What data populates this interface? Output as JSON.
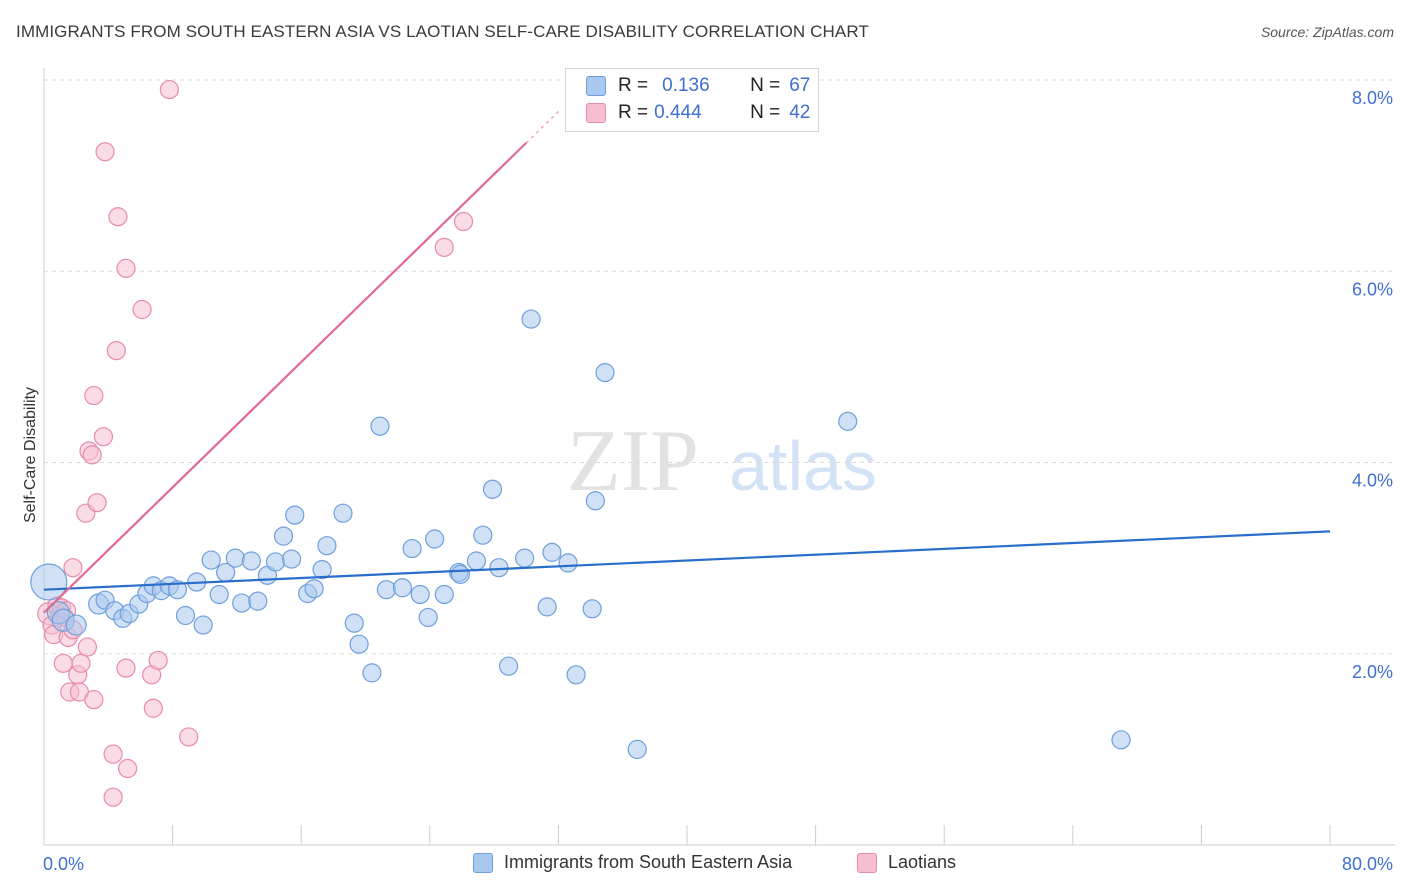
{
  "header": {
    "title": "IMMIGRANTS FROM SOUTH EASTERN ASIA VS LAOTIAN SELF-CARE DISABILITY CORRELATION CHART",
    "source": "Source: ZipAtlas.com"
  },
  "watermark": {
    "zip": "ZIP",
    "atlas": "atlas"
  },
  "legend_top": {
    "rows": [
      {
        "r_label": "R =",
        "r_value": "0.136",
        "n_label": "N =",
        "n_value": "67"
      },
      {
        "r_label": "R =",
        "r_value": "0.444",
        "n_label": "N =",
        "n_value": "42"
      }
    ]
  },
  "legend_bottom": {
    "items": [
      {
        "label": "Immigrants from South Eastern Asia"
      },
      {
        "label": "Laotians"
      }
    ]
  },
  "colors": {
    "blue_fill": "#a9c8ef",
    "blue_stroke": "#6f9fdc",
    "blue_line": "#2a6ecb",
    "pink_fill": "#f6bfd0",
    "pink_stroke": "#e98aaa",
    "pink_line": "#e2698f",
    "tick_label": "#3f6fd1",
    "grid": "#dcdcdc"
  },
  "chart_data": {
    "type": "scatter",
    "title": "IMMIGRANTS FROM SOUTH EASTERN ASIA VS LAOTIAN SELF-CARE DISABILITY CORRELATION CHART",
    "ylabel": "Self-Care Disability",
    "xlabel": "",
    "xlim": [
      0,
      80
    ],
    "ylim": [
      0,
      8.2
    ],
    "x_tick_labels": [
      "0.0%",
      "80.0%"
    ],
    "y_ticks": [
      2,
      4,
      6,
      8
    ],
    "y_tick_labels": [
      "2.0%",
      "4.0%",
      "6.0%",
      "8.0%"
    ],
    "grid": true,
    "legend_position": "top-center",
    "series": [
      {
        "name": "Immigrants from South Eastern Asia",
        "color": "blue",
        "trend": {
          "x": [
            0,
            80
          ],
          "y": [
            2.67,
            3.28
          ]
        },
        "points": [
          [
            0.3,
            2.75,
            18
          ],
          [
            0.9,
            2.43,
            11
          ],
          [
            1.2,
            2.35,
            11
          ],
          [
            2.0,
            2.3,
            10
          ],
          [
            3.4,
            2.52,
            10
          ],
          [
            3.8,
            2.56,
            9
          ],
          [
            4.4,
            2.45,
            9
          ],
          [
            4.9,
            2.37,
            9
          ],
          [
            5.3,
            2.42,
            9
          ],
          [
            5.9,
            2.52,
            9
          ],
          [
            6.4,
            2.63,
            9
          ],
          [
            6.8,
            2.71,
            9
          ],
          [
            7.3,
            2.66,
            9
          ],
          [
            7.8,
            2.71,
            9
          ],
          [
            8.3,
            2.67,
            9
          ],
          [
            8.8,
            2.4,
            9
          ],
          [
            9.5,
            2.75,
            9
          ],
          [
            9.9,
            2.3,
            9
          ],
          [
            10.4,
            2.98,
            9
          ],
          [
            10.9,
            2.62,
            9
          ],
          [
            11.3,
            2.85,
            9
          ],
          [
            11.9,
            3.0,
            9
          ],
          [
            12.3,
            2.53,
            9
          ],
          [
            12.9,
            2.97,
            9
          ],
          [
            13.3,
            2.55,
            9
          ],
          [
            13.9,
            2.82,
            9
          ],
          [
            14.4,
            2.96,
            9
          ],
          [
            14.9,
            3.23,
            9
          ],
          [
            15.4,
            2.99,
            9
          ],
          [
            15.6,
            3.45,
            9
          ],
          [
            16.4,
            2.63,
            9
          ],
          [
            16.8,
            2.68,
            9
          ],
          [
            17.3,
            2.88,
            9
          ],
          [
            17.6,
            3.13,
            9
          ],
          [
            18.6,
            3.47,
            9
          ],
          [
            19.3,
            2.32,
            9
          ],
          [
            19.6,
            2.1,
            9
          ],
          [
            20.4,
            1.8,
            9
          ],
          [
            20.9,
            4.38,
            9
          ],
          [
            21.3,
            2.67,
            9
          ],
          [
            22.3,
            2.69,
            9
          ],
          [
            22.9,
            3.1,
            9
          ],
          [
            23.4,
            2.62,
            9
          ],
          [
            23.9,
            2.38,
            9
          ],
          [
            24.3,
            3.2,
            9
          ],
          [
            24.9,
            2.62,
            9
          ],
          [
            25.8,
            2.85,
            9
          ],
          [
            25.9,
            2.83,
            9
          ],
          [
            26.9,
            2.97,
            9
          ],
          [
            27.3,
            3.24,
            9
          ],
          [
            27.9,
            3.72,
            9
          ],
          [
            28.3,
            2.9,
            9
          ],
          [
            28.9,
            1.87,
            9
          ],
          [
            29.9,
            3.0,
            9
          ],
          [
            30.3,
            5.5,
            9
          ],
          [
            31.3,
            2.49,
            9
          ],
          [
            31.6,
            3.06,
            9
          ],
          [
            32.6,
            2.95,
            9
          ],
          [
            33.1,
            1.78,
            9
          ],
          [
            34.1,
            2.47,
            9
          ],
          [
            34.3,
            3.6,
            9
          ],
          [
            34.9,
            4.94,
            9
          ],
          [
            36.9,
            1.0,
            9
          ],
          [
            50.0,
            4.43,
            9
          ],
          [
            67.0,
            1.1,
            9
          ]
        ]
      },
      {
        "name": "Laotians",
        "color": "pink",
        "trend": {
          "x": [
            0,
            32
          ],
          "y": [
            2.43,
            7.67
          ],
          "solid_until_x": 30
        },
        "points": [
          [
            0.3,
            2.42,
            11
          ],
          [
            0.5,
            2.3,
            9
          ],
          [
            0.6,
            2.2,
            9
          ],
          [
            0.8,
            2.5,
            9
          ],
          [
            1.0,
            2.4,
            9
          ],
          [
            1.1,
            2.48,
            9
          ],
          [
            1.3,
            2.38,
            9
          ],
          [
            1.4,
            2.45,
            9
          ],
          [
            1.2,
            1.9,
            9
          ],
          [
            1.5,
            2.17,
            9
          ],
          [
            1.6,
            1.6,
            9
          ],
          [
            1.8,
            2.25,
            9
          ],
          [
            1.8,
            2.9,
            9
          ],
          [
            2.1,
            1.78,
            9
          ],
          [
            2.2,
            1.6,
            9
          ],
          [
            2.3,
            1.9,
            9
          ],
          [
            2.6,
            3.47,
            9
          ],
          [
            2.7,
            2.07,
            9
          ],
          [
            2.8,
            4.12,
            9
          ],
          [
            3.0,
            4.08,
            9
          ],
          [
            3.1,
            4.7,
            9
          ],
          [
            3.1,
            1.52,
            9
          ],
          [
            3.3,
            3.58,
            9
          ],
          [
            3.7,
            4.27,
            9
          ],
          [
            3.8,
            7.25,
            9
          ],
          [
            4.3,
            0.95,
            9
          ],
          [
            4.3,
            0.5,
            9
          ],
          [
            4.5,
            5.17,
            9
          ],
          [
            4.6,
            6.57,
            9
          ],
          [
            5.1,
            1.85,
            9
          ],
          [
            5.1,
            6.03,
            9
          ],
          [
            5.2,
            0.8,
            9
          ],
          [
            6.1,
            5.6,
            9
          ],
          [
            6.7,
            1.78,
            9
          ],
          [
            6.8,
            1.43,
            9
          ],
          [
            7.1,
            1.93,
            9
          ],
          [
            7.8,
            7.9,
            9
          ],
          [
            9.0,
            1.13,
            9
          ],
          [
            24.9,
            6.25,
            9
          ],
          [
            26.1,
            6.52,
            9
          ]
        ]
      }
    ]
  }
}
